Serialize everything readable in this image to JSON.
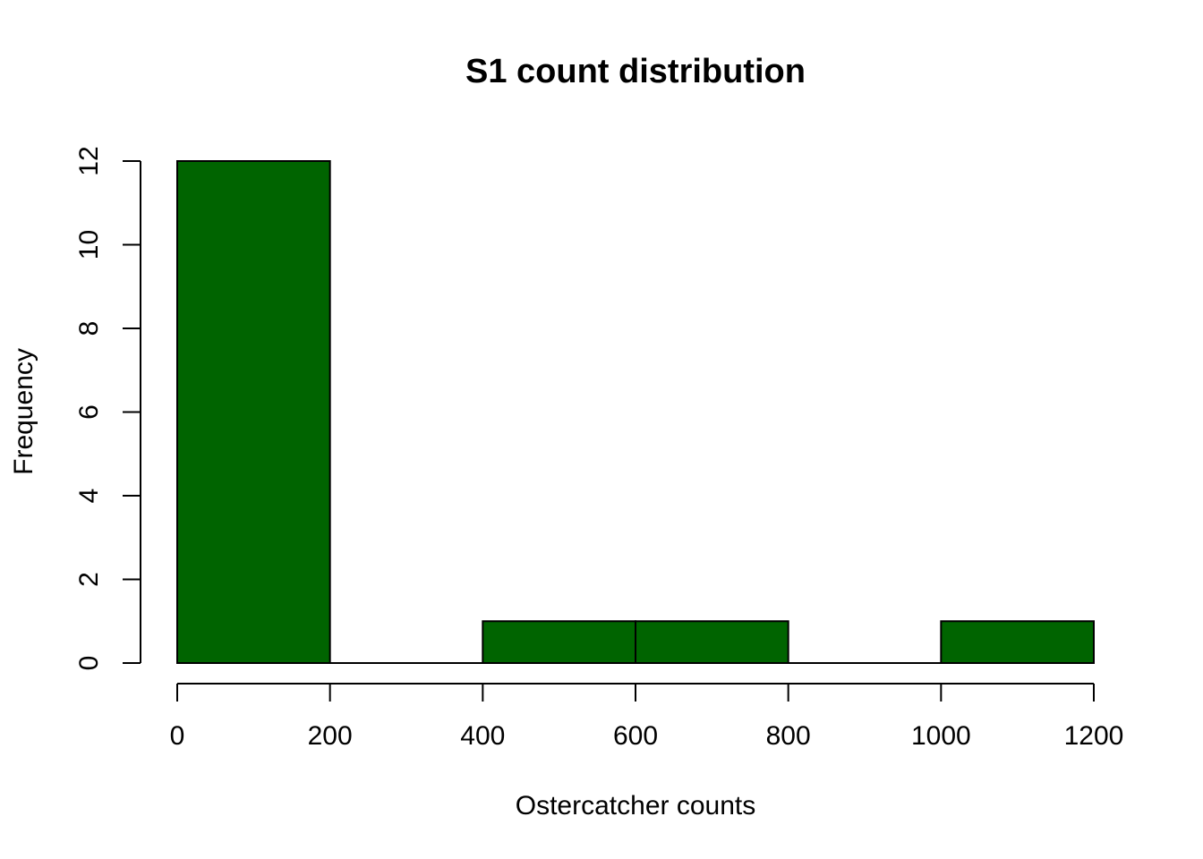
{
  "chart_data": {
    "type": "bar",
    "title": "S1 count distribution",
    "xlabel": "Ostercatcher counts",
    "ylabel": "Frequency",
    "bins": [
      {
        "start": 0,
        "end": 200,
        "count": 12
      },
      {
        "start": 200,
        "end": 400,
        "count": 0
      },
      {
        "start": 400,
        "end": 600,
        "count": 1
      },
      {
        "start": 600,
        "end": 800,
        "count": 1
      },
      {
        "start": 800,
        "end": 1000,
        "count": 0
      },
      {
        "start": 1000,
        "end": 1200,
        "count": 1
      }
    ],
    "xlim": [
      0,
      1200
    ],
    "ylim": [
      0,
      12
    ],
    "xticks": [
      0,
      200,
      400,
      600,
      800,
      1000,
      1200
    ],
    "yticks": [
      0,
      2,
      4,
      6,
      8,
      10,
      12
    ],
    "bar_color": "#006400",
    "grid": false
  }
}
